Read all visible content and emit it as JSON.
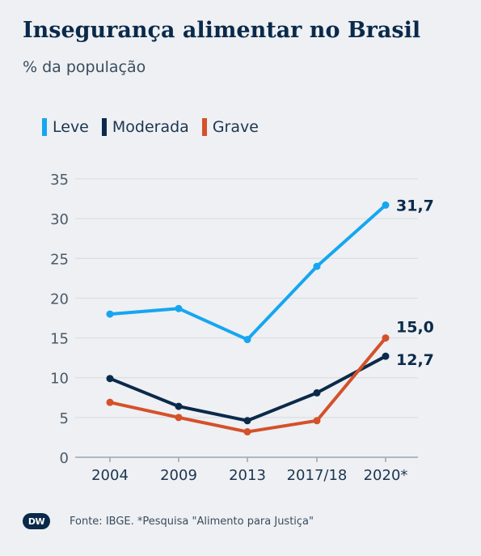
{
  "header": {
    "title": "Insegurança alimentar no Brasil",
    "subtitle": "% da população"
  },
  "legend": [
    {
      "label": "Leve",
      "color": "#16a6f0"
    },
    {
      "label": "Moderada",
      "color": "#0b2a4a"
    },
    {
      "label": "Grave",
      "color": "#d4512a"
    }
  ],
  "footer": {
    "logo": "DW",
    "source": "Fonte: IBGE. *Pesquisa \"Alimento para Justiça\""
  },
  "chart_data": {
    "type": "line",
    "categories": [
      "2004",
      "2009",
      "2013",
      "2017/18",
      "2020*"
    ],
    "series": [
      {
        "name": "Leve",
        "color": "#16a6f0",
        "values": [
          18.0,
          18.7,
          14.8,
          24.0,
          31.7
        ],
        "end_label": "31,7"
      },
      {
        "name": "Moderada",
        "color": "#0b2a4a",
        "values": [
          9.9,
          6.4,
          4.6,
          8.1,
          12.7
        ],
        "end_label": "12,7"
      },
      {
        "name": "Grave",
        "color": "#d4512a",
        "values": [
          6.9,
          5.0,
          3.2,
          4.6,
          15.0
        ],
        "end_label": "15,0"
      }
    ],
    "y_ticks": [
      "0",
      "5",
      "10",
      "15",
      "20",
      "25",
      "30",
      "35"
    ],
    "ylim": [
      0,
      35
    ],
    "grid": true
  }
}
